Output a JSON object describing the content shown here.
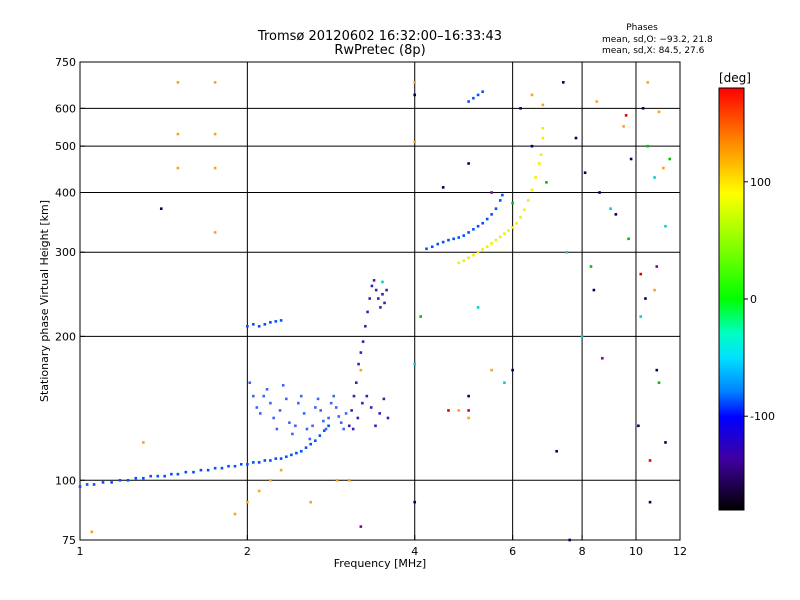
{
  "chart_data": {
    "type": "scatter",
    "title": "Tromsø 20120602 16:32:00–16:33:43",
    "subtitle": "RwPretec (8p)",
    "xlabel": "Frequency [MHz]",
    "ylabel": "Stationary phase Virtual Height [km]",
    "x_scale": "log",
    "y_scale": "log",
    "xlim": [
      1,
      12
    ],
    "ylim": [
      75,
      750
    ],
    "x_ticks": [
      1,
      2,
      4,
      6,
      8,
      10,
      12
    ],
    "y_ticks": [
      75,
      100,
      200,
      300,
      400,
      500,
      600,
      750
    ],
    "grid_x": [
      2,
      4,
      6,
      8,
      10
    ],
    "grid_y": [
      100,
      200,
      300,
      400,
      500,
      600
    ],
    "grid": true,
    "phases_box": {
      "title": "Phases",
      "line1": "mean, sd,O: −93.2, 21.8",
      "line2": "mean, sd,X:  84.5, 27.6"
    },
    "colorbar": {
      "label": "[deg]",
      "range": [
        -180,
        180
      ],
      "ticks": [
        100,
        0,
        -100
      ]
    },
    "series": [
      {
        "color": "#0050ff",
        "points": [
          [
            1.0,
            97
          ],
          [
            1.03,
            98
          ],
          [
            1.06,
            98
          ],
          [
            1.1,
            99
          ],
          [
            1.14,
            99
          ],
          [
            1.18,
            100
          ],
          [
            1.22,
            100
          ],
          [
            1.26,
            101
          ],
          [
            1.3,
            101
          ],
          [
            1.34,
            102
          ],
          [
            1.38,
            102
          ],
          [
            1.42,
            102
          ],
          [
            1.46,
            103
          ],
          [
            1.5,
            103
          ],
          [
            1.55,
            104
          ],
          [
            1.6,
            104
          ],
          [
            1.65,
            105
          ],
          [
            1.7,
            105
          ],
          [
            1.75,
            106
          ],
          [
            1.8,
            106
          ],
          [
            1.85,
            107
          ],
          [
            1.9,
            107
          ],
          [
            1.95,
            108
          ],
          [
            2.0,
            108
          ],
          [
            2.05,
            109
          ],
          [
            2.1,
            109
          ],
          [
            2.15,
            110
          ],
          [
            2.2,
            110
          ],
          [
            2.25,
            111
          ],
          [
            2.3,
            111
          ],
          [
            2.35,
            112
          ],
          [
            2.4,
            113
          ],
          [
            2.45,
            114
          ],
          [
            2.5,
            115
          ],
          [
            2.55,
            117
          ],
          [
            2.6,
            119
          ],
          [
            2.65,
            121
          ],
          [
            2.7,
            124
          ],
          [
            2.75,
            127
          ],
          [
            2.8,
            130
          ],
          [
            2.0,
            210
          ],
          [
            2.05,
            212
          ],
          [
            2.1,
            210
          ],
          [
            2.15,
            212
          ],
          [
            2.2,
            214
          ],
          [
            2.25,
            215
          ],
          [
            2.3,
            216
          ],
          [
            4.2,
            305
          ],
          [
            4.3,
            308
          ],
          [
            4.4,
            312
          ],
          [
            4.5,
            315
          ],
          [
            4.6,
            318
          ],
          [
            4.7,
            320
          ],
          [
            4.8,
            322
          ],
          [
            4.9,
            325
          ],
          [
            5.0,
            330
          ],
          [
            5.1,
            335
          ],
          [
            5.2,
            340
          ],
          [
            5.3,
            345
          ],
          [
            5.4,
            352
          ],
          [
            5.5,
            360
          ],
          [
            5.6,
            370
          ],
          [
            5.7,
            385
          ],
          [
            5.75,
            395
          ],
          [
            5.0,
            620
          ],
          [
            5.1,
            630
          ],
          [
            5.2,
            640
          ],
          [
            5.3,
            650
          ]
        ]
      },
      {
        "color": "#3f63f5",
        "points": [
          [
            2.02,
            160
          ],
          [
            2.05,
            150
          ],
          [
            2.08,
            142
          ],
          [
            2.11,
            138
          ],
          [
            2.14,
            150
          ],
          [
            2.17,
            155
          ],
          [
            2.2,
            145
          ],
          [
            2.23,
            135
          ],
          [
            2.26,
            128
          ],
          [
            2.29,
            140
          ],
          [
            2.32,
            158
          ],
          [
            2.35,
            148
          ],
          [
            2.38,
            132
          ],
          [
            2.41,
            125
          ],
          [
            2.44,
            130
          ],
          [
            2.47,
            145
          ],
          [
            2.5,
            150
          ],
          [
            2.53,
            138
          ],
          [
            2.56,
            128
          ],
          [
            2.59,
            122
          ],
          [
            2.62,
            130
          ],
          [
            2.65,
            142
          ],
          [
            2.68,
            148
          ],
          [
            2.71,
            140
          ],
          [
            2.74,
            133
          ],
          [
            2.77,
            128
          ],
          [
            2.8,
            135
          ],
          [
            2.83,
            145
          ],
          [
            2.86,
            150
          ],
          [
            2.89,
            142
          ],
          [
            2.92,
            136
          ],
          [
            2.95,
            132
          ],
          [
            2.98,
            128
          ],
          [
            3.01,
            138
          ]
        ]
      },
      {
        "color": "#3a1fb0",
        "points": [
          [
            3.05,
            130
          ],
          [
            3.08,
            140
          ],
          [
            3.11,
            150
          ],
          [
            3.14,
            160
          ],
          [
            3.17,
            175
          ],
          [
            3.2,
            185
          ],
          [
            3.23,
            195
          ],
          [
            3.26,
            210
          ],
          [
            3.29,
            225
          ],
          [
            3.32,
            240
          ],
          [
            3.35,
            255
          ],
          [
            3.38,
            262
          ],
          [
            3.41,
            250
          ],
          [
            3.44,
            240
          ],
          [
            3.47,
            230
          ],
          [
            3.5,
            245
          ],
          [
            3.53,
            235
          ],
          [
            3.56,
            250
          ],
          [
            3.1,
            128
          ],
          [
            3.16,
            135
          ],
          [
            3.22,
            145
          ],
          [
            3.28,
            150
          ],
          [
            3.34,
            142
          ],
          [
            3.4,
            130
          ],
          [
            3.46,
            138
          ],
          [
            3.52,
            148
          ],
          [
            3.58,
            135
          ]
        ]
      },
      {
        "color": "#f0f000",
        "points": [
          [
            4.8,
            285
          ],
          [
            4.9,
            288
          ],
          [
            5.0,
            292
          ],
          [
            5.1,
            296
          ],
          [
            5.2,
            300
          ],
          [
            5.3,
            304
          ],
          [
            5.4,
            308
          ],
          [
            5.5,
            313
          ],
          [
            5.6,
            318
          ],
          [
            5.7,
            323
          ],
          [
            5.8,
            328
          ],
          [
            5.9,
            333
          ],
          [
            6.0,
            338
          ],
          [
            6.1,
            345
          ],
          [
            6.2,
            355
          ],
          [
            6.3,
            368
          ],
          [
            6.4,
            385
          ],
          [
            6.5,
            405
          ],
          [
            6.6,
            430
          ],
          [
            6.7,
            460
          ],
          [
            6.75,
            480
          ],
          [
            6.8,
            520
          ],
          [
            6.8,
            545
          ]
        ]
      },
      {
        "color": "#ffa020",
        "points": [
          [
            1.05,
            78
          ],
          [
            1.3,
            120
          ],
          [
            1.5,
            680
          ],
          [
            1.5,
            530
          ],
          [
            1.5,
            450
          ],
          [
            1.75,
            680
          ],
          [
            1.75,
            530
          ],
          [
            1.75,
            450
          ],
          [
            1.75,
            330
          ],
          [
            1.9,
            85
          ],
          [
            2.0,
            90
          ],
          [
            2.1,
            95
          ],
          [
            2.2,
            100
          ],
          [
            2.3,
            105
          ],
          [
            2.6,
            90
          ],
          [
            2.9,
            100
          ],
          [
            3.05,
            100
          ],
          [
            3.2,
            170
          ],
          [
            4.0,
            680
          ],
          [
            4.0,
            510
          ],
          [
            4.8,
            140
          ],
          [
            5.0,
            135
          ],
          [
            5.5,
            170
          ],
          [
            6.5,
            640
          ],
          [
            6.8,
            610
          ],
          [
            8.5,
            620
          ],
          [
            9.5,
            550
          ],
          [
            10.5,
            680
          ],
          [
            11.0,
            590
          ],
          [
            11.2,
            450
          ],
          [
            10.8,
            250
          ]
        ]
      },
      {
        "color": "#00d0d0",
        "points": [
          [
            3.5,
            260
          ],
          [
            4.0,
            175
          ],
          [
            5.2,
            230
          ],
          [
            5.8,
            160
          ],
          [
            7.5,
            300
          ],
          [
            8.0,
            200
          ],
          [
            9.0,
            370
          ],
          [
            10.2,
            220
          ],
          [
            10.8,
            430
          ],
          [
            11.3,
            340
          ]
        ]
      },
      {
        "color": "#00c000",
        "points": [
          [
            4.1,
            220
          ],
          [
            6.0,
            380
          ],
          [
            6.9,
            420
          ],
          [
            8.3,
            280
          ],
          [
            9.7,
            320
          ],
          [
            10.5,
            500
          ],
          [
            11.0,
            160
          ],
          [
            11.5,
            470
          ]
        ]
      },
      {
        "color": "#000060",
        "points": [
          [
            1.4,
            370
          ],
          [
            4.0,
            640
          ],
          [
            5.0,
            460
          ],
          [
            6.2,
            600
          ],
          [
            7.4,
            680
          ],
          [
            7.8,
            520
          ],
          [
            8.1,
            440
          ],
          [
            8.6,
            400
          ],
          [
            9.2,
            360
          ],
          [
            9.8,
            470
          ],
          [
            10.1,
            130
          ],
          [
            10.3,
            600
          ],
          [
            10.4,
            240
          ],
          [
            10.6,
            90
          ],
          [
            10.9,
            170
          ],
          [
            11.3,
            120
          ],
          [
            4.0,
            90
          ],
          [
            4.5,
            410
          ],
          [
            5.0,
            150
          ],
          [
            6.0,
            170
          ],
          [
            6.5,
            500
          ],
          [
            7.2,
            115
          ],
          [
            7.6,
            75
          ],
          [
            8.4,
            250
          ]
        ]
      },
      {
        "color": "#e00000",
        "points": [
          [
            4.6,
            140
          ],
          [
            5.0,
            140
          ],
          [
            9.6,
            580
          ],
          [
            10.2,
            270
          ],
          [
            10.6,
            110
          ]
        ]
      },
      {
        "color": "#8000a0",
        "points": [
          [
            3.2,
            80
          ],
          [
            5.5,
            400
          ],
          [
            8.7,
            180
          ],
          [
            10.9,
            280
          ]
        ]
      }
    ]
  }
}
